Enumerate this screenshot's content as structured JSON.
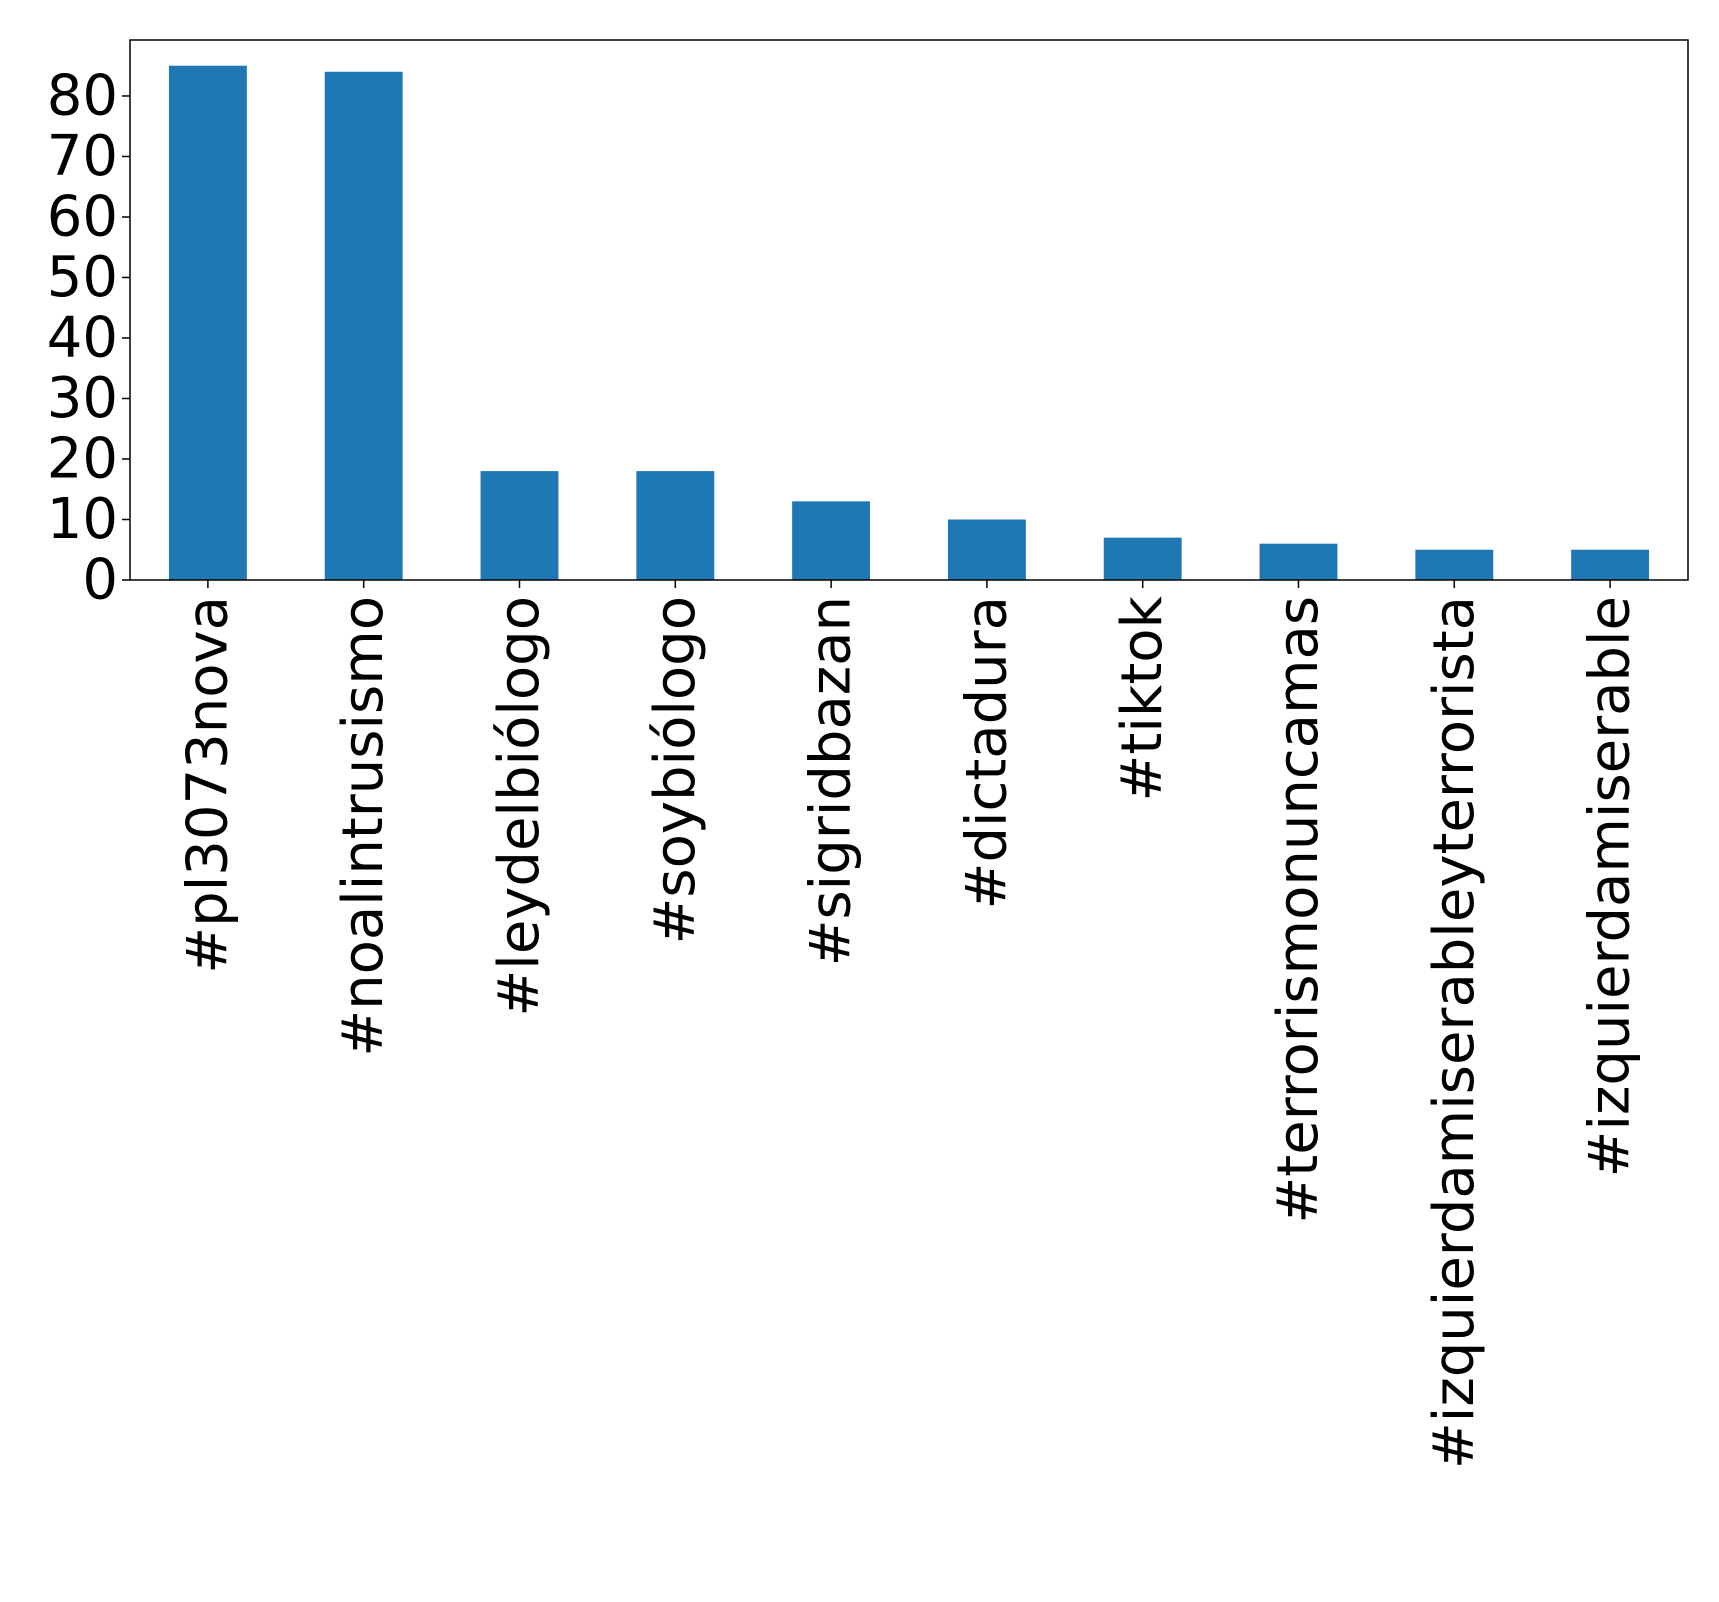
{
  "chart_data": {
    "type": "bar",
    "title": "",
    "xlabel": "",
    "ylabel": "",
    "categories": [
      "#pl3073nova",
      "#noalintrusismo",
      "#leydelbiólogo",
      "#soybiólogo",
      "#sigridbazan",
      "#dictadura",
      "#tiktok",
      "#terrorismonuncamas",
      "#izquierdamiserableyterrorista",
      "#izquierdamiserable"
    ],
    "values": [
      85,
      84,
      18,
      18,
      13,
      10,
      7,
      6,
      5,
      5
    ],
    "ylim": [
      0,
      89.25
    ],
    "yticks": [
      0,
      10,
      20,
      30,
      40,
      50,
      60,
      70,
      80
    ],
    "ytick_labels": [
      "0",
      "10",
      "20",
      "30",
      "40",
      "50",
      "60",
      "70",
      "80"
    ],
    "bar_color": "#1f77b4",
    "grid": false,
    "legend": "none"
  }
}
